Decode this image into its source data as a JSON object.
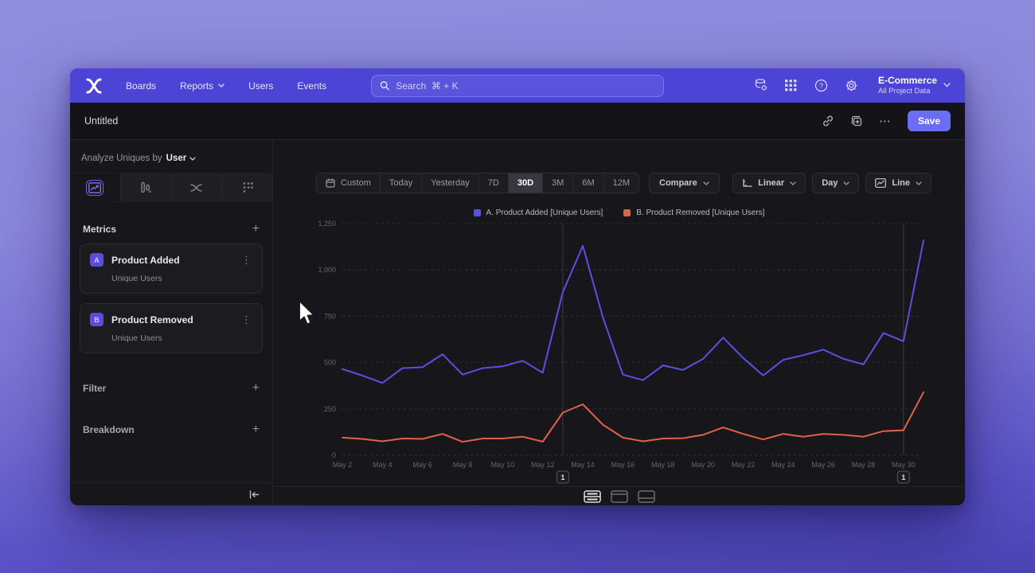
{
  "nav": {
    "items": [
      {
        "label": "Boards",
        "chevron": false
      },
      {
        "label": "Reports",
        "chevron": true
      },
      {
        "label": "Users",
        "chevron": false
      },
      {
        "label": "Events",
        "chevron": false
      }
    ],
    "search_placeholder": "Search  ⌘ + K",
    "project": {
      "name": "E-Commerce",
      "scope": "All Project Data"
    }
  },
  "header": {
    "title": "Untitled",
    "save_label": "Save"
  },
  "sidebar": {
    "analyze_prefix": "Analyze Uniques by",
    "analyze_value": "User",
    "metrics": {
      "label": "Metrics",
      "add_label": "+",
      "items": [
        {
          "badge": "A",
          "name": "Product Added",
          "sub": "Unique Users",
          "kebab": "⋮"
        },
        {
          "badge": "B",
          "name": "Product Removed",
          "sub": "Unique Users",
          "kebab": "⋮"
        }
      ]
    },
    "filter_label": "Filter",
    "filter_add": "+",
    "breakdown_label": "Breakdown",
    "breakdown_add": "+"
  },
  "toolbar": {
    "ranges": [
      "Custom",
      "Today",
      "Yesterday",
      "7D",
      "30D",
      "3M",
      "6M",
      "12M"
    ],
    "selected_range": "30D",
    "compare_label": "Compare",
    "scale_label": "Linear",
    "interval_label": "Day",
    "chart_type_label": "Line"
  },
  "chart_data": {
    "type": "line",
    "title": "",
    "x": [
      "May 2",
      "May 3",
      "May 4",
      "May 5",
      "May 6",
      "May 7",
      "May 8",
      "May 9",
      "May 10",
      "May 11",
      "May 12",
      "May 13",
      "May 14",
      "May 15",
      "May 16",
      "May 17",
      "May 18",
      "May 19",
      "May 20",
      "May 21",
      "May 22",
      "May 23",
      "May 24",
      "May 25",
      "May 26",
      "May 27",
      "May 28",
      "May 29",
      "May 30",
      "May 31"
    ],
    "xtick_every": 2,
    "series": [
      {
        "name": "A. Product Added [Unique Users]",
        "color": "#5a50e2",
        "values": [
          465,
          430,
          390,
          470,
          475,
          545,
          435,
          470,
          480,
          510,
          445,
          880,
          1130,
          745,
          435,
          405,
          485,
          460,
          520,
          635,
          525,
          430,
          515,
          540,
          570,
          520,
          490,
          660,
          615,
          1160
        ]
      },
      {
        "name": "B. Product Removed [Unique Users]",
        "color": "#e0614a",
        "values": [
          95,
          88,
          75,
          90,
          88,
          115,
          72,
          90,
          90,
          100,
          73,
          230,
          275,
          165,
          95,
          75,
          90,
          92,
          110,
          150,
          115,
          85,
          115,
          100,
          115,
          110,
          100,
          130,
          135,
          340
        ]
      }
    ],
    "ylim": [
      0,
      1250
    ],
    "yticks": [
      0,
      250,
      500,
      750,
      1000,
      1250
    ],
    "grid": "dashed-horizontal",
    "legend_position": "top-center",
    "annotations": [
      {
        "x_index": 11,
        "label": "1"
      },
      {
        "x_index": 28,
        "label": "1"
      }
    ]
  }
}
